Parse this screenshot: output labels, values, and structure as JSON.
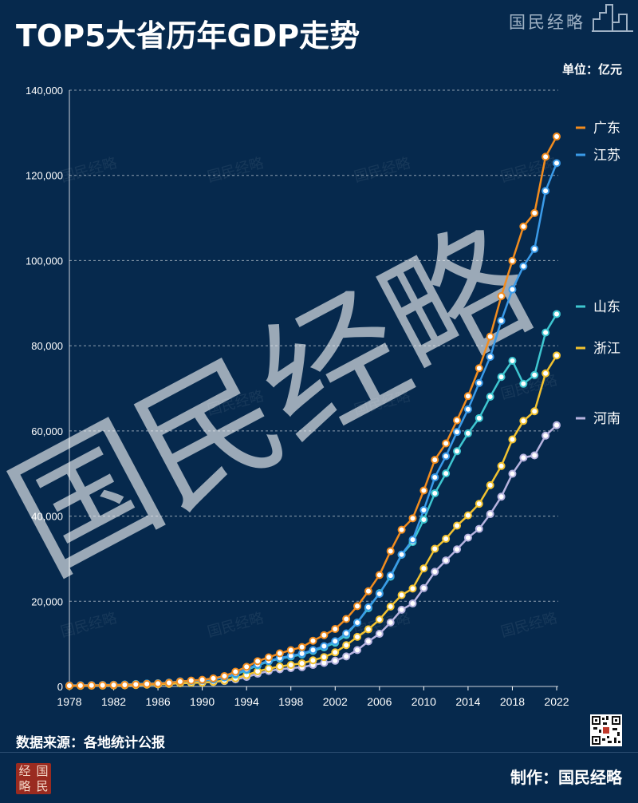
{
  "header": {
    "title": "TOP5大省历年GDP走势",
    "brand": "国民经略",
    "unit_label": "单位：亿元"
  },
  "footer": {
    "source": "数据来源：各地统计公报",
    "maker": "制作：国民经略",
    "stamp_chars": [
      "经",
      "国",
      "略",
      "民"
    ]
  },
  "watermark_text": "国民经略",
  "chart_data": {
    "type": "line",
    "title": "TOP5大省历年GDP走势",
    "ylabel": "亿元",
    "xlabel": "",
    "ylim": [
      0,
      140000
    ],
    "yticks": [
      0,
      20000,
      40000,
      60000,
      80000,
      100000,
      120000,
      140000
    ],
    "ytick_labels": [
      "0",
      "20,000",
      "40,000",
      "60,000",
      "80,000",
      "100,000",
      "120,000",
      "140,000"
    ],
    "xticks": [
      1978,
      1982,
      1986,
      1990,
      1994,
      1998,
      2002,
      2006,
      2010,
      2014,
      2018,
      2022
    ],
    "xtick_labels": [
      "1978",
      "1982",
      "1986",
      "1990",
      "1994",
      "1998",
      "2002",
      "2006",
      "2010",
      "2014",
      "2018",
      "2022"
    ],
    "grid": true,
    "legend": "right",
    "x": [
      1978,
      1979,
      1980,
      1981,
      1982,
      1983,
      1984,
      1985,
      1986,
      1987,
      1988,
      1989,
      1990,
      1991,
      1992,
      1993,
      1994,
      1995,
      1996,
      1997,
      1998,
      1999,
      2000,
      2001,
      2002,
      2003,
      2004,
      2005,
      2006,
      2007,
      2008,
      2009,
      2010,
      2011,
      2012,
      2013,
      2014,
      2015,
      2016,
      2017,
      2018,
      2019,
      2020,
      2021,
      2022
    ],
    "series": [
      {
        "name": "广东",
        "color": "#f28c1e",
        "values": [
          186,
          209,
          250,
          291,
          340,
          369,
          459,
          577,
          668,
          847,
          1155,
          1381,
          1559,
          1893,
          2448,
          3469,
          4619,
          5933,
          6835,
          7775,
          8531,
          9251,
          10741,
          12039,
          13502,
          15845,
          18865,
          22367,
          26159,
          31777,
          36797,
          39483,
          46013,
          53210,
          57068,
          62475,
          68173,
          74732,
          82163,
          91649,
          99945,
          107987,
          111152,
          124370,
          129119
        ]
      },
      {
        "name": "江苏",
        "color": "#3a9ae8",
        "values": [
          249,
          298,
          320,
          350,
          390,
          438,
          518,
          652,
          744,
          922,
          1208,
          1322,
          1417,
          1601,
          2136,
          2998,
          4057,
          5155,
          6004,
          6680,
          7200,
          7698,
          8554,
          9457,
          10632,
          12461,
          15004,
          18599,
          21742,
          26018,
          30982,
          34457,
          41425,
          49110,
          54058,
          59753,
          65088,
          71255,
          77388,
          85870,
          93208,
          98657,
          102719,
          116364,
          122876
        ]
      },
      {
        "name": "山东",
        "color": "#3ec6d0",
        "values": [
          225,
          251,
          292,
          346,
          395,
          459,
          582,
          681,
          742,
          892,
          1118,
          1294,
          1511,
          1810,
          2197,
          2770,
          3844,
          4953,
          5883,
          6537,
          7021,
          7493,
          8337,
          9195,
          10275,
          12078,
          15021,
          18366,
          21900,
          25776,
          30933,
          33896,
          39170,
          45361,
          50013,
          55230,
          59427,
          63002,
          68024,
          72678,
          76470,
          71068,
          73129,
          83096,
          87435
        ]
      },
      {
        "name": "浙江",
        "color": "#f2c230",
        "values": [
          124,
          157,
          180,
          204,
          234,
          258,
          323,
          429,
          502,
          606,
          770,
          849,
          905,
          1089,
          1376,
          1926,
          2689,
          3558,
          4189,
          4686,
          5052,
          5444,
          6141,
          6898,
          8004,
          9705,
          11649,
          13418,
          15718,
          18754,
          21463,
          22990,
          27722,
          32319,
          34665,
          37757,
          40173,
          42886,
          47251,
          51768,
          58003,
          62352,
          64613,
          73516,
          77715
        ]
      },
      {
        "name": "河南",
        "color": "#b7b3df",
        "values": [
          163,
          190,
          229,
          249,
          263,
          328,
          370,
          451,
          502,
          609,
          749,
          851,
          935,
          1045,
          1280,
          1661,
          2224,
          2989,
          3635,
          4041,
          4308,
          4518,
          5053,
          5533,
          6035,
          7049,
          8554,
          10587,
          12363,
          15012,
          18019,
          19480,
          23092,
          26931,
          29599,
          32191,
          34938,
          37002,
          40472,
          44553,
          49936,
          53717,
          54259,
          58887,
          61345
        ]
      }
    ]
  }
}
